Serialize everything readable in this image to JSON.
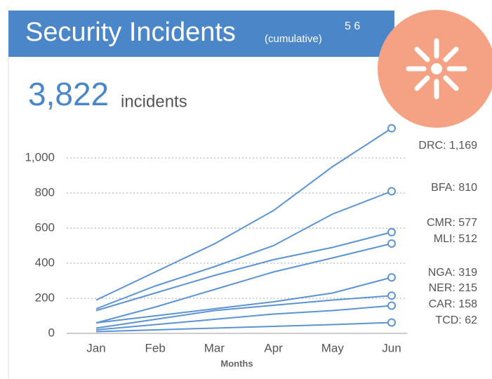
{
  "header": {
    "title": "Security Incidents",
    "subtitle": "(cumulative)",
    "footnotes": "5 6"
  },
  "summary": {
    "total": "3,822",
    "unit": "incidents"
  },
  "chart_data": {
    "type": "line",
    "x_label": "Months",
    "categories": [
      "Jan",
      "Feb",
      "Mar",
      "Apr",
      "May",
      "Jun"
    ],
    "ylim": [
      0,
      1200
    ],
    "yticks": [
      0,
      200,
      400,
      600,
      800,
      {
        "value": 1000,
        "label": "1,000"
      }
    ],
    "grid": true,
    "series": [
      {
        "color": "#5b93d3",
        "values": [
          190,
          350,
          510,
          700,
          950,
          1169
        ],
        "value_labels": [
          null,
          null,
          null,
          null,
          null,
          "DRC: 1,169"
        ]
      },
      {
        "color": "#5b93d3",
        "values": [
          140,
          270,
          380,
          500,
          680,
          810
        ],
        "value_labels": [
          null,
          null,
          null,
          null,
          null,
          "BFA: 810"
        ]
      },
      {
        "color": "#5b93d3",
        "values": [
          130,
          230,
          330,
          420,
          490,
          577
        ],
        "value_labels": [
          null,
          null,
          null,
          null,
          null,
          "CMR: 577"
        ]
      },
      {
        "color": "#5b93d3",
        "values": [
          60,
          150,
          250,
          350,
          430,
          512
        ],
        "value_labels": [
          null,
          null,
          null,
          null,
          null,
          "MLI: 512"
        ]
      },
      {
        "color": "#5b93d3",
        "values": [
          60,
          100,
          140,
          180,
          230,
          319
        ],
        "value_labels": [
          null,
          null,
          null,
          null,
          null,
          "NGA: 319"
        ]
      },
      {
        "color": "#5b93d3",
        "values": [
          30,
          80,
          130,
          160,
          190,
          215
        ],
        "value_labels": [
          null,
          null,
          null,
          null,
          null,
          "NER: 215"
        ]
      },
      {
        "color": "#5b93d3",
        "values": [
          20,
          50,
          80,
          110,
          130,
          158
        ],
        "value_labels": [
          null,
          null,
          null,
          null,
          null,
          "CAR: 158"
        ]
      },
      {
        "color": "#5b93d3",
        "values": [
          10,
          20,
          30,
          40,
          50,
          62
        ],
        "value_labels": [
          null,
          null,
          null,
          null,
          null,
          "TCD: 62"
        ]
      }
    ]
  }
}
